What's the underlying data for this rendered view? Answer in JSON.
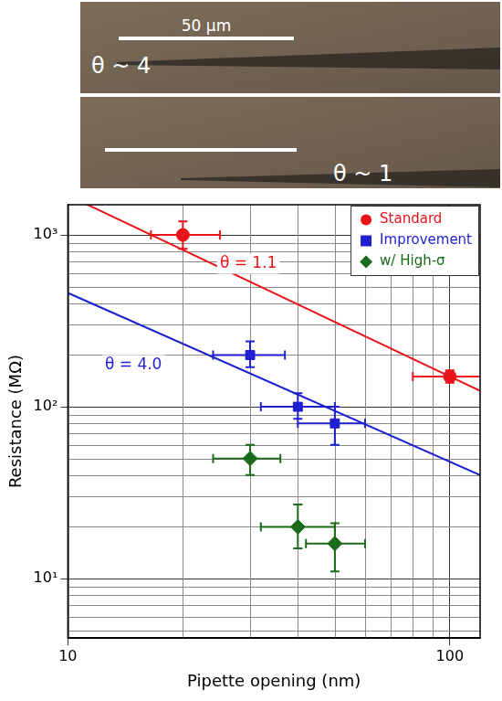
{
  "images": [
    {
      "label": "θ ~ 4",
      "scale_bar": "50 µm"
    },
    {
      "label": "θ ~ 1"
    }
  ],
  "chart_data": {
    "type": "scatter",
    "log": true,
    "grid": true,
    "legend": "top-right",
    "x_label": "Pipette opening (nm)",
    "y_label": "Resistance (MΩ)",
    "xlim": [
      10,
      120
    ],
    "xticks": [
      10,
      100
    ],
    "ylim": [
      4.5,
      1500
    ],
    "yticks": [
      {
        "value": 10,
        "label": "10¹"
      },
      {
        "value": 100,
        "label": "10²"
      },
      {
        "value": 1000,
        "label": "10³"
      }
    ],
    "series": [
      {
        "name": "Standard",
        "color": "#e8141b",
        "marker": "circle",
        "x": [
          20,
          100
        ],
        "values": [
          1000,
          150
        ],
        "x_error": [
          [
            16.5,
            25
          ],
          [
            80,
            122
          ]
        ],
        "y_error": [
          [
            830,
            1200
          ],
          [
            138,
            163
          ]
        ]
      },
      {
        "name": "Improvement",
        "color": "#1f1fd0",
        "marker": "square",
        "x": [
          30,
          40,
          50
        ],
        "values": [
          200,
          100,
          80
        ],
        "x_error": [
          [
            24,
            37
          ],
          [
            32,
            50
          ],
          [
            40,
            60
          ]
        ],
        "y_error": [
          [
            170,
            240
          ],
          [
            85,
            120
          ],
          [
            60,
            100
          ]
        ]
      },
      {
        "name": "w/ High-σ",
        "color": "#1a6b1a",
        "marker": "diamond",
        "x": [
          30,
          40,
          50
        ],
        "values": [
          50,
          20,
          16
        ],
        "x_error": [
          [
            24,
            36
          ],
          [
            32,
            50
          ],
          [
            42,
            60
          ]
        ],
        "y_error": [
          [
            40,
            60
          ],
          [
            15,
            27
          ],
          [
            11,
            21
          ]
        ]
      }
    ],
    "fits": [
      {
        "type": "line",
        "line_style": "solid",
        "color": "#e8141b",
        "x": [
          10,
          120
        ],
        "values": [
          1700,
          124
        ]
      },
      {
        "type": "line",
        "line_style": "solid",
        "color": "#1f1fd0",
        "x": [
          10,
          120
        ],
        "values": [
          460,
          40
        ]
      }
    ],
    "annotations": [
      {
        "text": "θ = 1.1",
        "x": 25,
        "y": 680,
        "color": "#e8141b"
      },
      {
        "text": "θ = 4.0",
        "x": 12.5,
        "y": 175,
        "color": "#1f1fd0"
      }
    ]
  }
}
